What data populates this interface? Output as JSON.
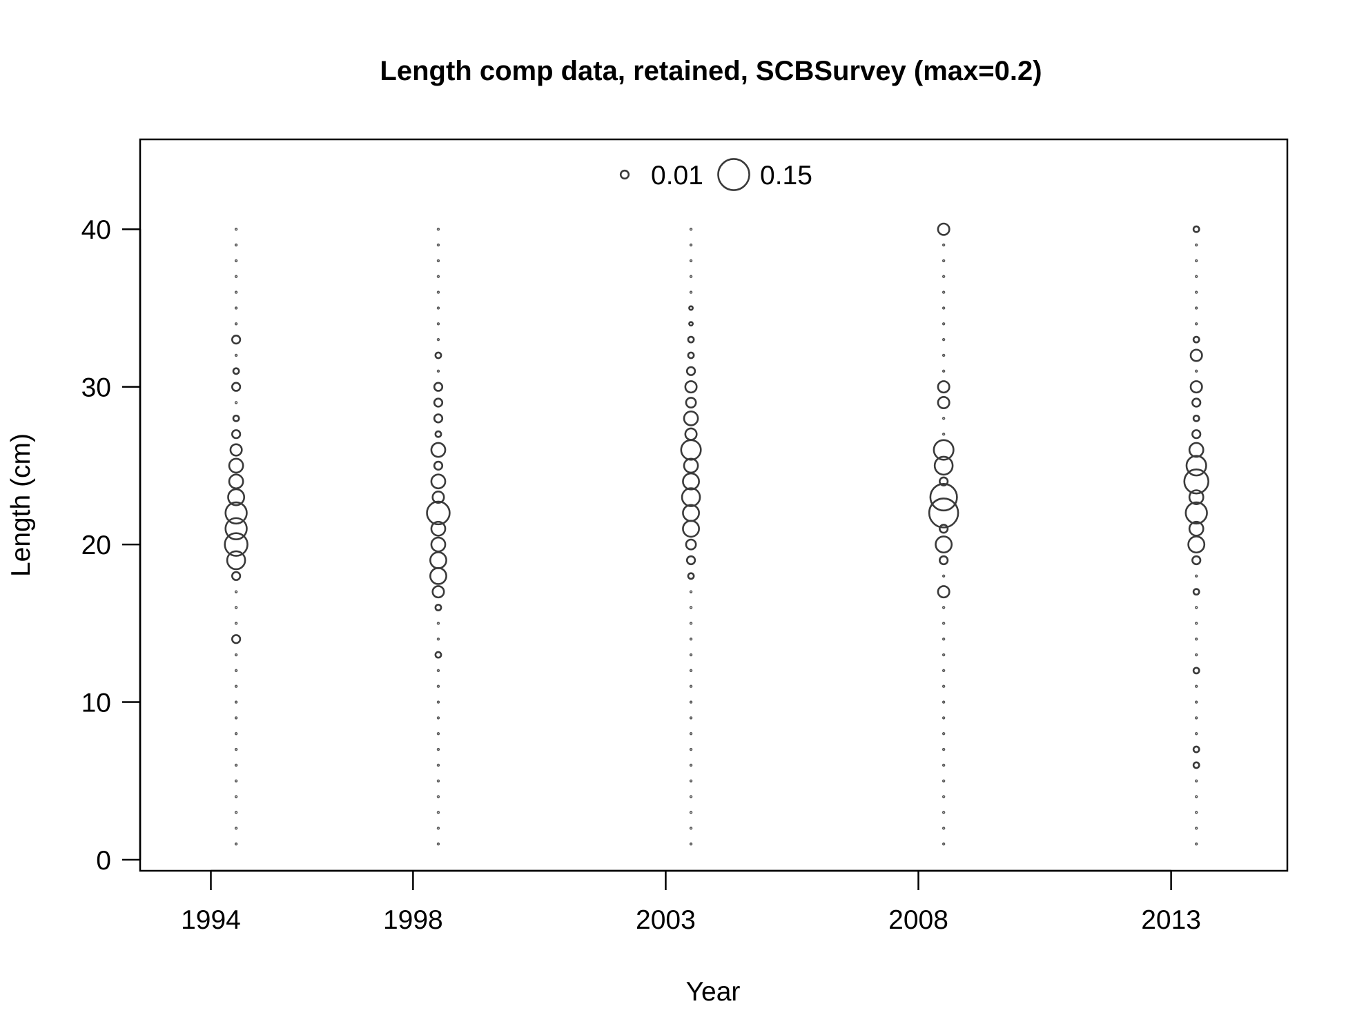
{
  "chart_data": {
    "type": "scatter",
    "subtype": "bubble",
    "title": "Length comp data, retained, SCBSurvey (max=0.2)",
    "xlabel": "Year",
    "ylabel": "Length (cm)",
    "x_ticks": [
      "1994",
      "1998",
      "2003",
      "2008",
      "2013"
    ],
    "x_tick_values": [
      1994,
      1998,
      2003,
      2008,
      2013
    ],
    "xlim": [
      1992.6,
      2015.3
    ],
    "y_ticks": [
      "0",
      "10",
      "20",
      "30",
      "40"
    ],
    "y_tick_values": [
      0,
      10,
      20,
      30,
      40
    ],
    "ylim": [
      -0.7,
      45.7
    ],
    "grid": false,
    "legend": {
      "position": "top-center",
      "entries": [
        {
          "label": "0.01",
          "value": 0.01
        },
        {
          "label": "0.15",
          "value": 0.15
        }
      ]
    },
    "max_value": 0.2,
    "length_bins": [
      1,
      2,
      3,
      4,
      5,
      6,
      7,
      8,
      9,
      10,
      11,
      12,
      13,
      14,
      15,
      16,
      17,
      18,
      19,
      20,
      21,
      22,
      23,
      24,
      25,
      26,
      27,
      28,
      29,
      30,
      31,
      32,
      33,
      34,
      35,
      36,
      37,
      38,
      39,
      40
    ],
    "series": [
      {
        "x": 1994.5,
        "values": [
          0,
          0,
          0,
          0,
          0,
          0,
          0,
          0,
          0,
          0,
          0,
          0,
          0,
          0.01,
          0,
          0,
          0,
          0.01,
          0.05,
          0.08,
          0.07,
          0.07,
          0.04,
          0.03,
          0.03,
          0.02,
          0.01,
          0.005,
          0,
          0.01,
          0.005,
          0,
          0.01,
          0,
          0,
          0,
          0,
          0,
          0,
          0
        ]
      },
      {
        "x": 1998.5,
        "values": [
          0,
          0,
          0,
          0,
          0,
          0,
          0,
          0,
          0,
          0,
          0,
          0,
          0.005,
          0,
          0,
          0.005,
          0.02,
          0.04,
          0.04,
          0.03,
          0.03,
          0.08,
          0.02,
          0.03,
          0.01,
          0.03,
          0.005,
          0.01,
          0.01,
          0.01,
          0,
          0.005,
          0,
          0,
          0,
          0,
          0,
          0,
          0,
          0
        ]
      },
      {
        "x": 2003.5,
        "values": [
          0,
          0,
          0,
          0,
          0,
          0,
          0,
          0,
          0,
          0,
          0,
          0,
          0,
          0,
          0,
          0,
          0,
          0.005,
          0.01,
          0.015,
          0.04,
          0.04,
          0.05,
          0.04,
          0.03,
          0.06,
          0.02,
          0.03,
          0.015,
          0.02,
          0.01,
          0.005,
          0.005,
          0.002,
          0.002,
          0,
          0,
          0,
          0,
          0
        ]
      },
      {
        "x": 2008.5,
        "values": [
          0,
          0,
          0,
          0,
          0,
          0,
          0,
          0,
          0,
          0,
          0,
          0,
          0,
          0,
          0,
          0,
          0.02,
          0,
          0.01,
          0.04,
          0.01,
          0.13,
          0.11,
          0.01,
          0.05,
          0.06,
          0,
          0,
          0.02,
          0.02,
          0,
          0,
          0,
          0,
          0,
          0,
          0,
          0,
          0,
          0.02
        ]
      },
      {
        "x": 2013.5,
        "values": [
          0,
          0,
          0,
          0,
          0,
          0.005,
          0.005,
          0,
          0,
          0,
          0,
          0.005,
          0,
          0,
          0,
          0,
          0.005,
          0,
          0.01,
          0.04,
          0.03,
          0.07,
          0.03,
          0.09,
          0.06,
          0.03,
          0.01,
          0.005,
          0.01,
          0.02,
          0,
          0.02,
          0.005,
          0,
          0,
          0,
          0,
          0,
          0,
          0.005
        ]
      }
    ]
  }
}
